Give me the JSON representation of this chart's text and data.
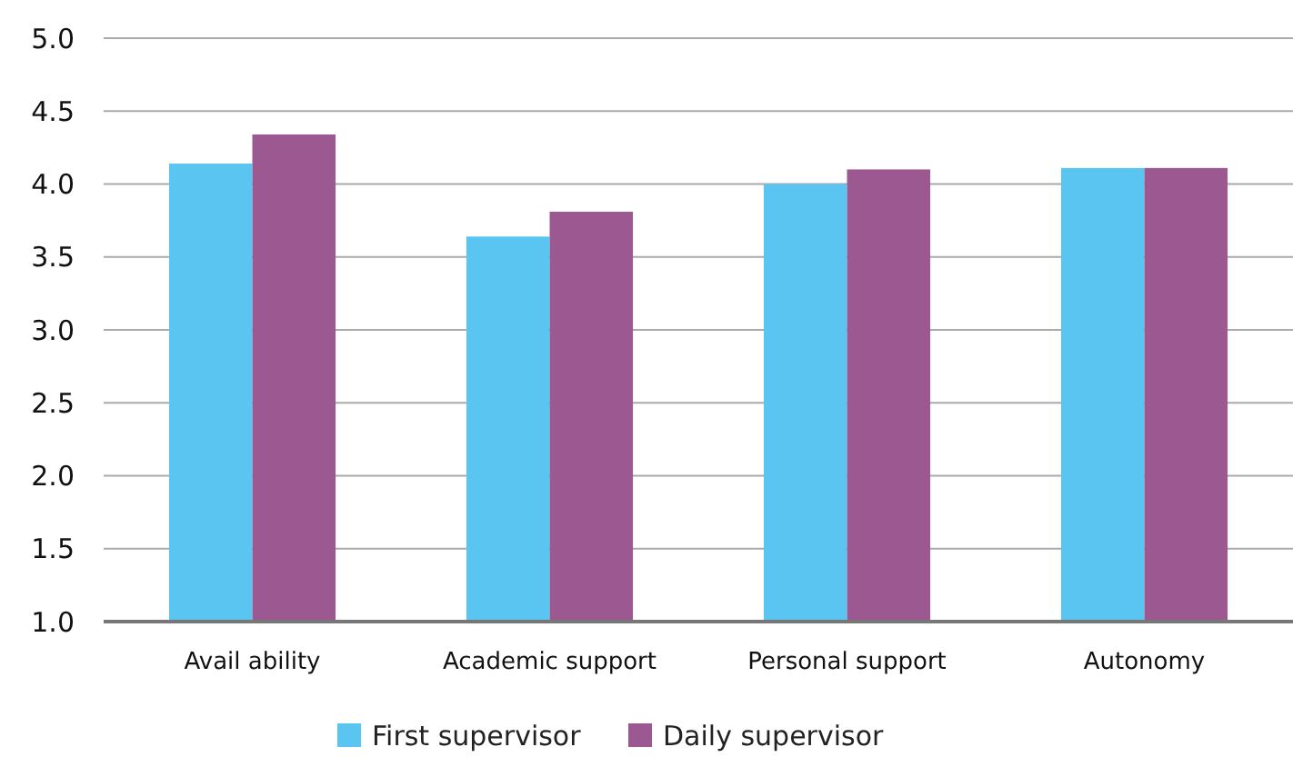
{
  "chart_data": {
    "type": "bar",
    "categories": [
      "Avail ability",
      "Academic support",
      "Personal support",
      "Autonomy"
    ],
    "series": [
      {
        "name": "First supervisor",
        "color": "#5bc5f2",
        "values": [
          4.14,
          3.64,
          4.0,
          4.11
        ]
      },
      {
        "name": "Daily supervisor",
        "color": "#9c5891",
        "values": [
          4.34,
          3.81,
          4.1,
          4.11
        ]
      }
    ],
    "ylim": [
      1,
      5
    ],
    "yticks": [
      {
        "value": 1,
        "label": "1.0"
      },
      {
        "value": 1.5,
        "label": "1.5"
      },
      {
        "value": 2,
        "label": "2.0"
      },
      {
        "value": 2.5,
        "label": "2.5"
      },
      {
        "value": 3,
        "label": "3.0"
      },
      {
        "value": 3.5,
        "label": "3.5"
      },
      {
        "value": 4,
        "label": "4.0"
      },
      {
        "value": 4.5,
        "label": "4.5"
      },
      {
        "value": 5,
        "label": "5.0"
      }
    ],
    "grid": "y",
    "legend": "bottom"
  }
}
